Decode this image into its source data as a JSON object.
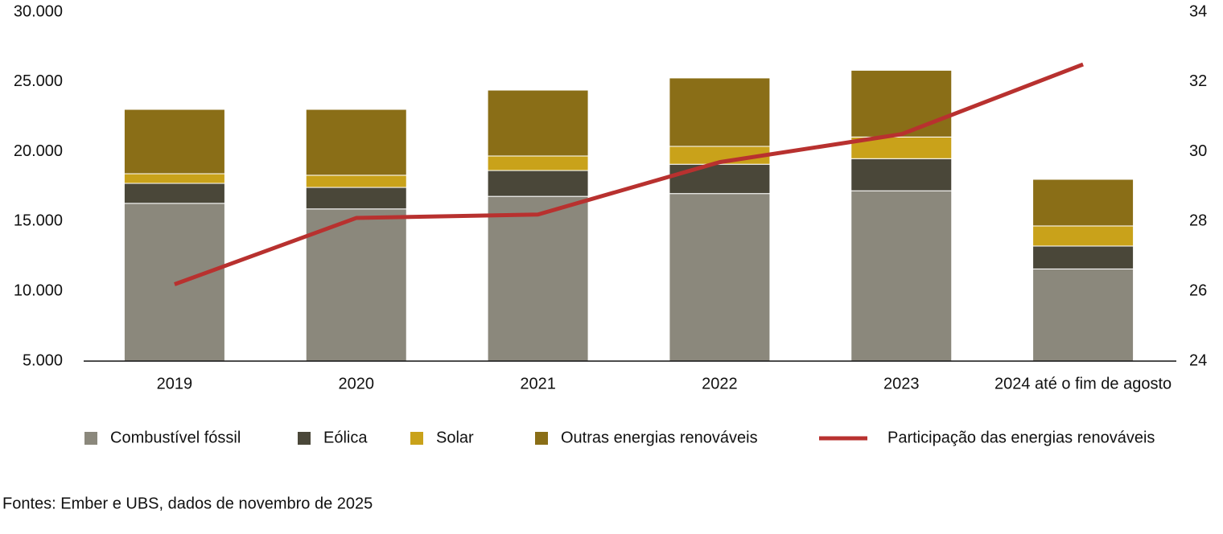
{
  "chart_data": {
    "type": "bar",
    "stacked": true,
    "categories": [
      "2019",
      "2020",
      "2021",
      "2022",
      "2023",
      "2024 até o fim de agosto"
    ],
    "series": [
      {
        "name": "Combustível fóssil",
        "color": "#8b887c",
        "values": [
          16300,
          15900,
          16800,
          17000,
          17200,
          11600
        ]
      },
      {
        "name": "Eólica",
        "color": "#4a4739",
        "values": [
          1430,
          1540,
          1850,
          2100,
          2300,
          1640
        ]
      },
      {
        "name": "Solar",
        "color": "#c9a21a",
        "values": [
          690,
          870,
          1040,
          1280,
          1550,
          1440
        ]
      },
      {
        "name": "Outras energias renováveis",
        "color": "#8a6e17",
        "values": [
          4610,
          4720,
          4720,
          4900,
          4780,
          3340
        ]
      },
      {
        "name": "Participação das energias renováveis",
        "color": "#b8312f",
        "type": "line",
        "axis": "y2",
        "values": [
          26.2,
          28.1,
          28.2,
          29.7,
          30.5,
          32.5
        ]
      }
    ],
    "ylim": [
      5000,
      30000
    ],
    "yticks": [
      {
        "value": 5000,
        "label": "5.000"
      },
      {
        "value": 10000,
        "label": "10.000"
      },
      {
        "value": 15000,
        "label": "15.000"
      },
      {
        "value": 20000,
        "label": "20.000"
      },
      {
        "value": 25000,
        "label": "25.000"
      },
      {
        "value": 30000,
        "label": "30.000"
      }
    ],
    "y2lim": [
      24,
      34
    ],
    "y2ticks": [
      24,
      26,
      28,
      30,
      32,
      34
    ],
    "grid": false,
    "legend": "bottom",
    "source": "Fontes: Ember e UBS, dados de novembro de 2025"
  }
}
